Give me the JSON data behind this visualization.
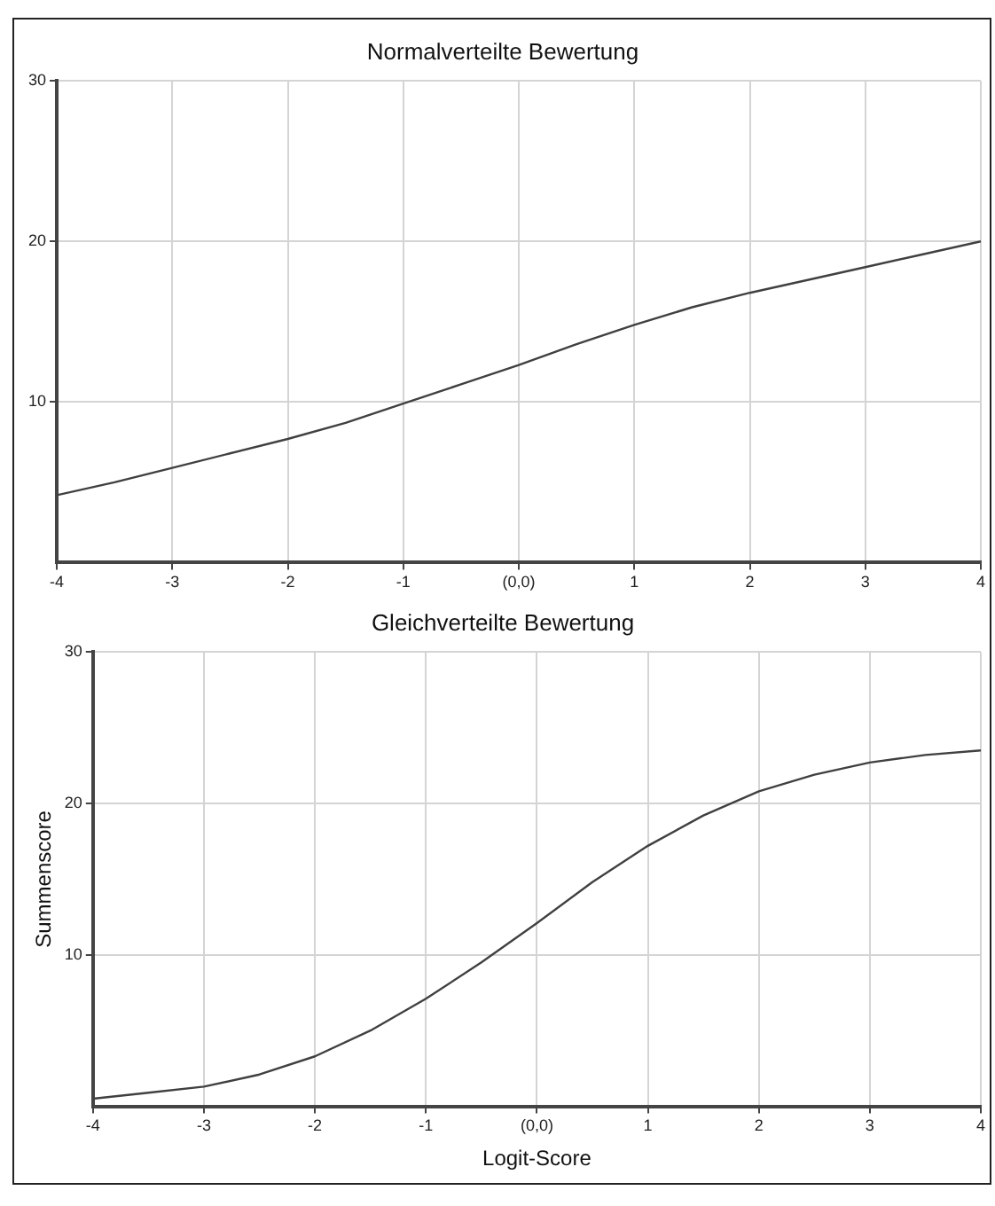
{
  "chart_data": [
    {
      "type": "line",
      "title": "Normalverteilte Bewertung",
      "x": [
        -4,
        -3.5,
        -3,
        -2.5,
        -2,
        -1.5,
        -1,
        -0.5,
        0,
        0.5,
        1,
        1.5,
        2,
        2.5,
        3,
        3.5,
        4
      ],
      "series": [
        {
          "color": "#404040",
          "values": [
            4.2,
            5,
            5.9,
            6.8,
            7.7,
            8.7,
            9.9,
            11.1,
            12.3,
            13.6,
            14.8,
            15.9,
            16.8,
            17.6,
            18.4,
            19.2,
            20
          ]
        }
      ],
      "xlim": [
        -4,
        4
      ],
      "xticks": [
        -4,
        -3,
        -2,
        -1,
        {
          "value": 0,
          "label": "(0,0)"
        },
        1,
        2,
        3,
        4
      ],
      "ylim": [
        0,
        30
      ],
      "yticks": [
        10,
        20,
        30
      ],
      "grid": true,
      "legend": false,
      "marker": "none",
      "line_style": "solid"
    },
    {
      "type": "line",
      "title": "Gleichverteilte Bewertung",
      "xlabel": "Logit-Score",
      "ylabel": "Summenscore",
      "x": [
        -4,
        -3.5,
        -3,
        -2.5,
        -2,
        -1.5,
        -1,
        -0.5,
        0,
        0.5,
        1,
        1.5,
        2,
        2.5,
        3,
        3.5,
        4
      ],
      "series": [
        {
          "color": "#404040",
          "values": [
            0.5,
            0.9,
            1.3,
            2.1,
            3.3,
            5,
            7.1,
            9.5,
            12.1,
            14.8,
            17.2,
            19.2,
            20.8,
            21.9,
            22.7,
            23.2,
            23.5
          ]
        }
      ],
      "xlim": [
        -4,
        4
      ],
      "xticks": [
        -4,
        -3,
        -2,
        -1,
        {
          "value": 0,
          "label": "(0,0)"
        },
        1,
        2,
        3,
        4
      ],
      "ylim": [
        0,
        30
      ],
      "yticks": [
        10,
        20,
        30
      ],
      "grid": true,
      "legend": false,
      "marker": "none",
      "line_style": "solid"
    }
  ]
}
